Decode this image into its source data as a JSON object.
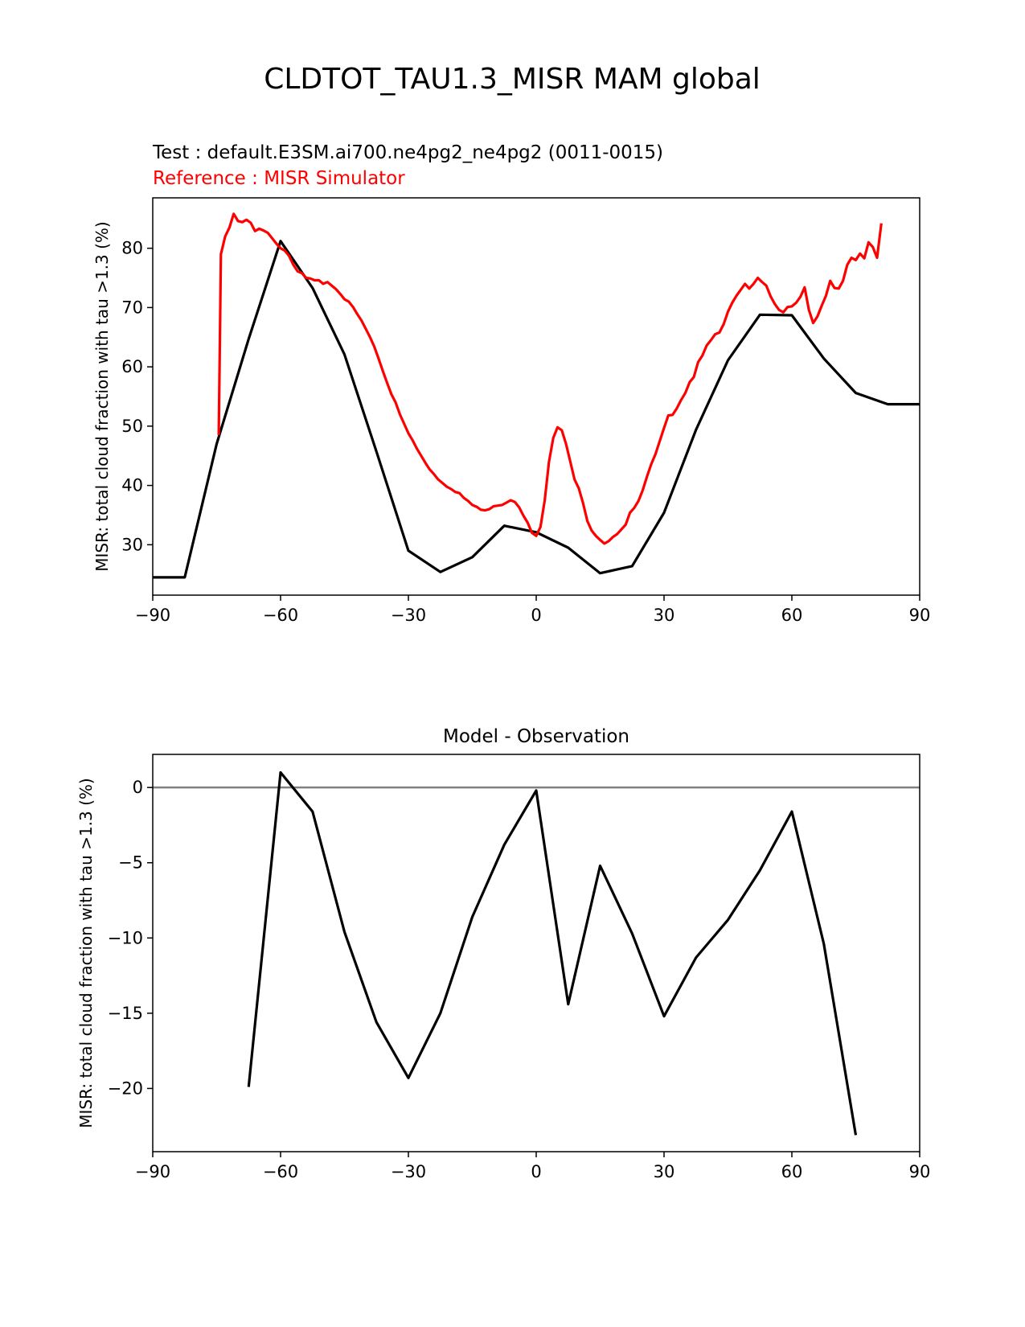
{
  "figure": {
    "title": "CLDTOT_TAU1.3_MISR MAM global"
  },
  "colors": {
    "test": "#000000",
    "reference": "#ff0000",
    "zero_line": "#808080"
  },
  "chart_data": [
    {
      "type": "line",
      "test_label": "Test : default.E3SM.ai700.ne4pg2_ne4pg2 (0011-0015)",
      "reference_label": "Reference : MISR Simulator",
      "ylabel": "MISR: total cloud fraction with tau >1.3 (%)",
      "xlim": [
        -90,
        90
      ],
      "ylim": [
        21.5,
        88.5
      ],
      "xticks": [
        -90,
        -60,
        -30,
        0,
        30,
        60,
        90
      ],
      "xtick_labels": [
        "−90",
        "−60",
        "−30",
        "0",
        "30",
        "60",
        "90"
      ],
      "yticks": [
        30,
        40,
        50,
        60,
        70,
        80
      ],
      "ytick_labels": [
        "30",
        "40",
        "50",
        "60",
        "70",
        "80"
      ],
      "series": [
        {
          "role": "test",
          "x": [
            -90,
            -82.5,
            -75,
            -67.5,
            -60,
            -52.5,
            -45,
            -37.5,
            -30,
            -22.5,
            -15,
            -7.5,
            0,
            7.5,
            15,
            22.5,
            30,
            37.5,
            45,
            52.5,
            60,
            67.5,
            75,
            82.5,
            90
          ],
          "y": [
            24.5,
            24.5,
            47.0,
            64.7,
            81.2,
            73.3,
            62.1,
            45.7,
            29.0,
            25.4,
            27.9,
            33.2,
            32.1,
            29.5,
            25.2,
            26.4,
            35.4,
            49.4,
            61.1,
            68.8,
            68.7,
            61.4,
            55.6,
            53.7,
            53.7
          ]
        },
        {
          "role": "reference",
          "x": [
            -74.5,
            -74,
            -73,
            -72,
            -71,
            -70.5,
            -70,
            -69,
            -68,
            -67,
            -66,
            -65,
            -64,
            -63,
            -62,
            -61,
            -60,
            -59,
            -58,
            -57,
            -56,
            -55,
            -54,
            -53,
            -52,
            -51,
            -50,
            -49,
            -48,
            -47,
            -46,
            -45,
            -44,
            -43,
            -42,
            -41,
            -40,
            -39,
            -38,
            -37,
            -36,
            -35,
            -34,
            -33,
            -32,
            -31,
            -30,
            -29,
            -28,
            -27,
            -26,
            -25,
            -24,
            -23,
            -22,
            -21,
            -20,
            -19,
            -18,
            -17,
            -16,
            -15,
            -14,
            -13,
            -12,
            -11,
            -10,
            -9,
            -8,
            -7,
            -6,
            -5,
            -4,
            -3,
            -2,
            -1,
            0,
            1,
            2,
            3,
            4,
            5,
            6,
            7,
            8,
            9,
            10,
            11,
            12,
            13,
            14,
            15,
            16,
            17,
            18,
            19,
            20,
            21,
            22,
            23,
            24,
            25,
            26,
            27,
            28,
            29,
            30,
            31,
            32,
            33,
            34,
            35,
            36,
            37,
            38,
            39,
            40,
            41,
            42,
            43,
            44,
            45,
            46,
            47,
            48,
            49,
            50,
            51,
            52,
            53,
            54,
            55,
            56,
            57,
            58,
            59,
            60,
            61,
            62,
            63,
            64,
            65,
            66,
            67,
            68,
            69,
            70,
            71,
            72,
            73,
            74,
            75,
            76,
            77,
            78,
            79,
            80,
            81
          ],
          "y": [
            48.5,
            79.0,
            82.0,
            83.5,
            85.8,
            85.2,
            84.6,
            84.4,
            84.8,
            84.3,
            82.9,
            83.3,
            83.0,
            82.6,
            81.7,
            80.8,
            80.0,
            79.6,
            78.7,
            77.2,
            76.1,
            75.8,
            75.0,
            74.9,
            74.6,
            74.6,
            74.0,
            74.3,
            73.7,
            73.1,
            72.3,
            71.4,
            71.0,
            70.1,
            68.9,
            67.8,
            66.4,
            65.0,
            63.4,
            61.4,
            59.3,
            57.3,
            55.4,
            54.0,
            52.0,
            50.4,
            48.8,
            47.6,
            46.2,
            45.0,
            43.8,
            42.7,
            41.9,
            41.0,
            40.4,
            39.8,
            39.4,
            38.9,
            38.7,
            37.9,
            37.4,
            36.7,
            36.4,
            35.9,
            35.8,
            36.0,
            36.5,
            36.6,
            36.7,
            37.1,
            37.5,
            37.2,
            36.3,
            34.9,
            33.7,
            32.0,
            31.5,
            33.0,
            37.5,
            44.0,
            48.0,
            49.8,
            49.3,
            47.0,
            44.0,
            41.0,
            39.5,
            37.0,
            34.0,
            32.4,
            31.5,
            30.8,
            30.2,
            30.6,
            31.3,
            31.8,
            32.6,
            33.4,
            35.4,
            36.2,
            37.4,
            39.2,
            41.5,
            43.6,
            45.3,
            47.5,
            49.7,
            51.8,
            51.9,
            53.0,
            54.4,
            55.6,
            57.4,
            58.3,
            60.8,
            61.9,
            63.6,
            64.5,
            65.5,
            65.8,
            67.2,
            69.3,
            70.8,
            72.0,
            73.0,
            74.0,
            73.2,
            74.0,
            75.0,
            74.3,
            73.7,
            71.9,
            70.6,
            69.6,
            69.2,
            70.1,
            70.2,
            70.8,
            71.8,
            73.4,
            69.6,
            67.4,
            68.5,
            70.3,
            72.0,
            74.5,
            73.3,
            73.2,
            74.5,
            77.2,
            78.4,
            78.0,
            79.1,
            78.3,
            81.0,
            80.2,
            78.4,
            84.2
          ]
        }
      ]
    },
    {
      "type": "line",
      "title": "Model - Observation",
      "ylabel": "MISR: total cloud fraction with tau >1.3 (%)",
      "xlim": [
        -90,
        90
      ],
      "ylim": [
        -24.2,
        2.2
      ],
      "xticks": [
        -90,
        -60,
        -30,
        0,
        30,
        60,
        90
      ],
      "xtick_labels": [
        "−90",
        "−60",
        "−30",
        "0",
        "30",
        "60",
        "90"
      ],
      "yticks": [
        0,
        -5,
        -10,
        -15,
        -20
      ],
      "ytick_labels": [
        "0",
        "−5",
        "−10",
        "−15",
        "−20"
      ],
      "zero_line": true,
      "series": [
        {
          "role": "difference",
          "x": [
            -67.5,
            -60,
            -52.5,
            -45,
            -37.5,
            -30,
            -22.5,
            -15,
            -7.5,
            0,
            7.5,
            15,
            22.5,
            30,
            37.5,
            45,
            52.5,
            60,
            67.5,
            75
          ],
          "y": [
            -19.9,
            1.0,
            -1.6,
            -9.6,
            -15.6,
            -19.3,
            -15.0,
            -8.6,
            -3.8,
            -0.2,
            -14.4,
            -5.2,
            -9.7,
            -15.2,
            -11.3,
            -8.8,
            -5.5,
            -1.6,
            -10.4,
            -23.1
          ]
        }
      ]
    }
  ]
}
